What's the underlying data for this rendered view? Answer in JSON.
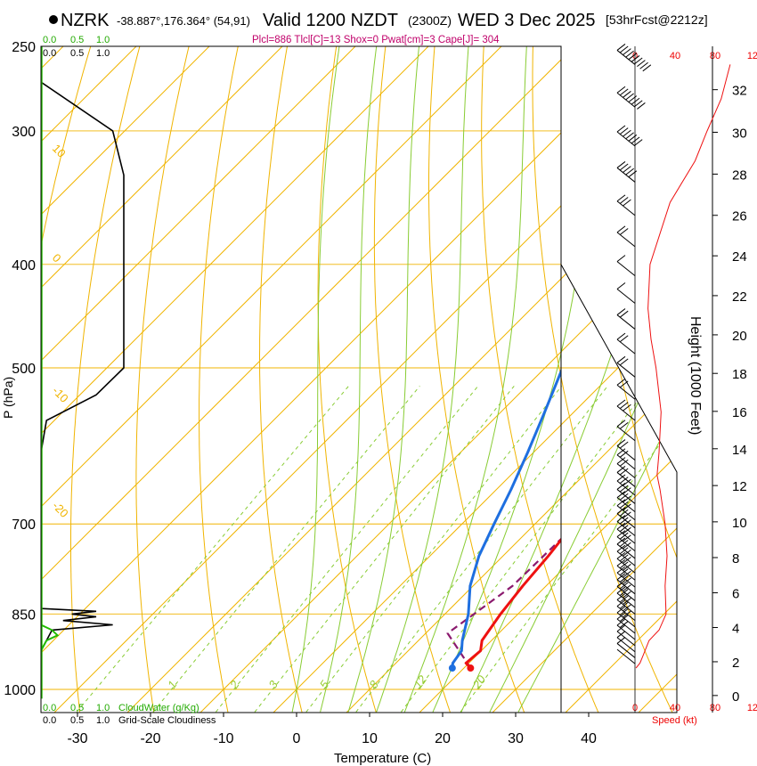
{
  "header": {
    "station": "NZRK",
    "coords": "-38.887°,176.364° (54,91)",
    "valid": "Valid 1200 NZDT",
    "zulu": "(2300Z)",
    "date": "WED 3 Dec 2025",
    "forecast": "[53hrFcst@2212z]",
    "params": "Plcl=886 Tlcl[C]=13 Shox=0 Pwat[cm]=3 Cape[J]= 304"
  },
  "cloud": {
    "ticks_top_green": [
      "0.0",
      "0.5",
      "1.0"
    ],
    "ticks_top_black": [
      "0.0",
      "0.5",
      "1.0"
    ],
    "ticks_bottom_green": [
      "0.0",
      "0.5",
      "1.0"
    ],
    "ticks_bottom_black": [
      "0.0",
      "0.5",
      "1.0"
    ],
    "water_label": "CloudWater (g/Kg)",
    "cover_label": "Grid-Scale Cloudiness"
  },
  "wind": {
    "ticks": [
      "0",
      "40",
      "80",
      "120"
    ],
    "bottom_label": "Speed (kt)"
  },
  "chart_data": {
    "type": "skew-T log-P sounding",
    "xlabel": "Temperature (C)",
    "ylabel": "P (hPa)",
    "y2label": "Height (1000 Feet)",
    "x_ticks": [
      -30,
      -20,
      -10,
      0,
      10,
      20,
      30,
      40
    ],
    "x_range": [
      -35,
      37
    ],
    "pressure_range": [
      250,
      1020
    ],
    "pressure_ticks": [
      250,
      300,
      400,
      500,
      700,
      850,
      1000
    ],
    "height_ticks": [
      0,
      2,
      4,
      6,
      8,
      10,
      12,
      14,
      16,
      18,
      20,
      22,
      24,
      26,
      28,
      30,
      32
    ],
    "temperature": [
      [
        955,
        20.9
      ],
      [
        945,
        19.6
      ],
      [
        920,
        19.9
      ],
      [
        900,
        18.7
      ],
      [
        850,
        17.6
      ],
      [
        800,
        16.8
      ],
      [
        750,
        16.2
      ],
      [
        700,
        15.3
      ],
      [
        650,
        13.2
      ],
      [
        600,
        11.0
      ],
      [
        550,
        8.2
      ],
      [
        500,
        5.0
      ],
      [
        450,
        1.0
      ],
      [
        400,
        -4.0
      ],
      [
        350,
        -11.0
      ],
      [
        320,
        -16.5
      ],
      [
        300,
        -20.5
      ],
      [
        280,
        -26.5
      ],
      [
        260,
        -33.0
      ]
    ],
    "dewpoint": [
      [
        955,
        18.4
      ],
      [
        945,
        17.8
      ],
      [
        920,
        17.3
      ],
      [
        900,
        16.0
      ],
      [
        850,
        13.2
      ],
      [
        800,
        9.6
      ],
      [
        750,
        6.7
      ],
      [
        700,
        4.4
      ],
      [
        650,
        2.0
      ],
      [
        600,
        -0.8
      ],
      [
        550,
        -4.0
      ],
      [
        500,
        -7.6
      ],
      [
        450,
        -12.2
      ],
      [
        400,
        -17.5
      ],
      [
        350,
        -23.5
      ],
      [
        300,
        -31.5
      ],
      [
        270,
        -38.0
      ],
      [
        262,
        -40.0
      ]
    ],
    "parcel": [
      [
        955,
        20.9
      ],
      [
        886,
        13.0
      ],
      [
        800,
        15.4
      ],
      [
        700,
        15.7
      ],
      [
        600,
        13.4
      ],
      [
        500,
        8.5
      ],
      [
        450,
        4.5
      ],
      [
        400,
        -1.5
      ],
      [
        370,
        -6.5
      ],
      [
        350,
        -11.0
      ]
    ],
    "isotherm_labels": [
      {
        "t": 0,
        "p": 350,
        "text": "0"
      },
      {
        "t": 10,
        "p": 445,
        "text": "10"
      },
      {
        "t": 20,
        "p": 545,
        "text": "20"
      },
      {
        "t": 30,
        "p": 645,
        "text": "30"
      }
    ],
    "dry_adiabat_labels": [
      {
        "theta": 10,
        "p": 312,
        "text": "10"
      },
      {
        "theta": 0,
        "p": 395,
        "text": "0"
      },
      {
        "theta": -10,
        "p": 526,
        "text": "-10"
      },
      {
        "theta": -20,
        "p": 674,
        "text": "-20"
      }
    ],
    "mixing_ratio_labels": [
      "1",
      "2",
      "3",
      "5",
      "8",
      "12",
      "20"
    ],
    "mixing_ratio_values": [
      1,
      2,
      3,
      5,
      8,
      12,
      20
    ],
    "cloud_cover": [
      [
        250,
        0.0
      ],
      [
        270,
        0.0
      ],
      [
        300,
        0.65
      ],
      [
        330,
        0.75
      ],
      [
        400,
        0.75
      ],
      [
        450,
        0.75
      ],
      [
        500,
        0.75
      ],
      [
        530,
        0.5
      ],
      [
        560,
        0.05
      ],
      [
        600,
        0.0
      ],
      [
        840,
        0.0
      ],
      [
        845,
        0.5
      ],
      [
        850,
        0.28
      ],
      [
        855,
        0.5
      ],
      [
        862,
        0.2
      ],
      [
        870,
        0.65
      ],
      [
        880,
        0.1
      ],
      [
        900,
        0.05
      ],
      [
        920,
        0.0
      ]
    ],
    "cloud_water": [
      [
        870,
        0.0
      ],
      [
        880,
        0.1
      ],
      [
        890,
        0.15
      ],
      [
        900,
        0.05
      ],
      [
        920,
        0.0
      ]
    ],
    "wind_speed": [
      [
        955,
        1
      ],
      [
        945,
        5
      ],
      [
        930,
        8
      ],
      [
        900,
        14
      ],
      [
        880,
        24
      ],
      [
        850,
        31
      ],
      [
        800,
        30
      ],
      [
        750,
        32
      ],
      [
        700,
        30
      ],
      [
        650,
        25
      ],
      [
        630,
        22
      ],
      [
        600,
        24
      ],
      [
        550,
        26
      ],
      [
        500,
        21
      ],
      [
        470,
        16
      ],
      [
        440,
        13
      ],
      [
        400,
        15
      ],
      [
        350,
        35
      ],
      [
        320,
        60
      ],
      [
        300,
        72
      ],
      [
        280,
        86
      ],
      [
        260,
        95
      ]
    ]
  }
}
